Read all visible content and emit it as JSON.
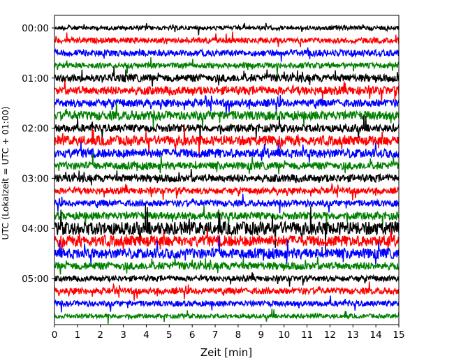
{
  "chart_data": {
    "type": "line",
    "subtype": "helicorder",
    "xlabel": "Zeit  [min]",
    "ylabel": "UTC (Lokalzeit = UTC + 01:00)",
    "xlim": [
      0,
      15
    ],
    "x_ticks": [
      0,
      1,
      2,
      3,
      4,
      5,
      6,
      7,
      8,
      9,
      10,
      11,
      12,
      13,
      14,
      15
    ],
    "x_tick_labels": [
      "0",
      "1",
      "2",
      "3",
      "4",
      "5",
      "6",
      "7",
      "8",
      "9",
      "10",
      "11",
      "12",
      "13",
      "14",
      "15"
    ],
    "y_ticks": [
      {
        "label": "00:00",
        "row": 0
      },
      {
        "label": "01:00",
        "row": 4
      },
      {
        "label": "02:00",
        "row": 8
      },
      {
        "label": "03:00",
        "row": 12
      },
      {
        "label": "04:00",
        "row": 16
      },
      {
        "label": "05:00",
        "row": 20
      }
    ],
    "row_minutes": 15,
    "row_count": 24,
    "trace_colors": [
      "#000000",
      "#ff0000",
      "#0000ff",
      "#008000"
    ],
    "row_amplitudes": [
      0.3,
      0.4,
      0.45,
      0.4,
      0.55,
      0.6,
      0.55,
      0.65,
      0.55,
      0.7,
      0.65,
      0.55,
      0.55,
      0.45,
      0.45,
      0.55,
      0.95,
      0.8,
      0.75,
      0.55,
      0.4,
      0.45,
      0.4,
      0.3
    ],
    "grid": false
  }
}
